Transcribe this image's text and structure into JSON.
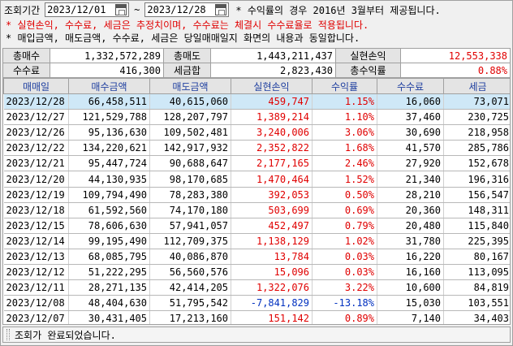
{
  "filter": {
    "period_label": "조회기간",
    "start_date": "2023/12/01",
    "end_date": "2023/12/28",
    "tilde": "~",
    "note1": "* 수익률의 경우 2016년 3월부터 제공됩니다.",
    "note2": "* 실현손익, 수수료, 세금은 추정치이며, 수수료는 체결시 수수료율로 적용됩니다.",
    "note3": "* 매입금액, 매도금액, 수수료, 세금은 당일매매일지 화면의 내용과 동일합니다."
  },
  "summary": {
    "buy_total_label": "총매수",
    "buy_total": "1,332,572,289",
    "sell_total_label": "총매도",
    "sell_total": "1,443,211,437",
    "realized_label": "실현손익",
    "realized": "12,553,338",
    "fee_label": "수수료",
    "fee": "416,300",
    "tax_label": "세금합",
    "tax": "2,823,430",
    "yield_label": "총수익률",
    "yield": "0.88%"
  },
  "table": {
    "headers": [
      "매매일",
      "매수금액",
      "매도금액",
      "실현손익",
      "수익률",
      "수수료",
      "세금"
    ],
    "rows": [
      {
        "date": "2023/12/28",
        "buy": "66,458,511",
        "sell": "40,615,060",
        "pnl": "459,747",
        "rate": "1.15%",
        "fee": "16,060",
        "tax": "73,071",
        "neg": false
      },
      {
        "date": "2023/12/27",
        "buy": "121,529,788",
        "sell": "128,207,797",
        "pnl": "1,389,214",
        "rate": "1.10%",
        "fee": "37,460",
        "tax": "230,725",
        "neg": false
      },
      {
        "date": "2023/12/26",
        "buy": "95,136,630",
        "sell": "109,502,481",
        "pnl": "3,240,006",
        "rate": "3.06%",
        "fee": "30,690",
        "tax": "218,958",
        "neg": false
      },
      {
        "date": "2023/12/22",
        "buy": "134,220,621",
        "sell": "142,917,932",
        "pnl": "2,352,822",
        "rate": "1.68%",
        "fee": "41,570",
        "tax": "285,786",
        "neg": false
      },
      {
        "date": "2023/12/21",
        "buy": "95,447,724",
        "sell": "90,688,647",
        "pnl": "2,177,165",
        "rate": "2.46%",
        "fee": "27,920",
        "tax": "152,678",
        "neg": false
      },
      {
        "date": "2023/12/20",
        "buy": "44,130,935",
        "sell": "98,170,685",
        "pnl": "1,470,464",
        "rate": "1.52%",
        "fee": "21,340",
        "tax": "196,316",
        "neg": false
      },
      {
        "date": "2023/12/19",
        "buy": "109,794,490",
        "sell": "78,283,380",
        "pnl": "392,053",
        "rate": "0.50%",
        "fee": "28,210",
        "tax": "156,547",
        "neg": false
      },
      {
        "date": "2023/12/18",
        "buy": "61,592,560",
        "sell": "74,170,180",
        "pnl": "503,699",
        "rate": "0.69%",
        "fee": "20,360",
        "tax": "148,311",
        "neg": false
      },
      {
        "date": "2023/12/15",
        "buy": "78,606,630",
        "sell": "57,941,057",
        "pnl": "452,497",
        "rate": "0.79%",
        "fee": "20,480",
        "tax": "115,840",
        "neg": false
      },
      {
        "date": "2023/12/14",
        "buy": "99,195,490",
        "sell": "112,709,375",
        "pnl": "1,138,129",
        "rate": "1.02%",
        "fee": "31,780",
        "tax": "225,395",
        "neg": false
      },
      {
        "date": "2023/12/13",
        "buy": "68,085,795",
        "sell": "40,086,870",
        "pnl": "13,784",
        "rate": "0.03%",
        "fee": "16,220",
        "tax": "80,167",
        "neg": false
      },
      {
        "date": "2023/12/12",
        "buy": "51,222,295",
        "sell": "56,560,576",
        "pnl": "15,096",
        "rate": "0.03%",
        "fee": "16,160",
        "tax": "113,095",
        "neg": false
      },
      {
        "date": "2023/12/11",
        "buy": "28,271,135",
        "sell": "42,414,205",
        "pnl": "1,322,076",
        "rate": "3.22%",
        "fee": "10,600",
        "tax": "84,819",
        "neg": false
      },
      {
        "date": "2023/12/08",
        "buy": "48,404,630",
        "sell": "51,795,542",
        "pnl": "-7,841,829",
        "rate": "-13.18%",
        "fee": "15,030",
        "tax": "103,551",
        "neg": true
      },
      {
        "date": "2023/12/07",
        "buy": "30,431,405",
        "sell": "17,213,160",
        "pnl": "151,142",
        "rate": "0.89%",
        "fee": "7,140",
        "tax": "34,403",
        "neg": false
      }
    ]
  },
  "status": {
    "message": "조회가 완료되었습니다."
  },
  "colors": {
    "positive": "#e00000",
    "negative": "#0030c0",
    "selected_row": "#cfe8f7"
  }
}
